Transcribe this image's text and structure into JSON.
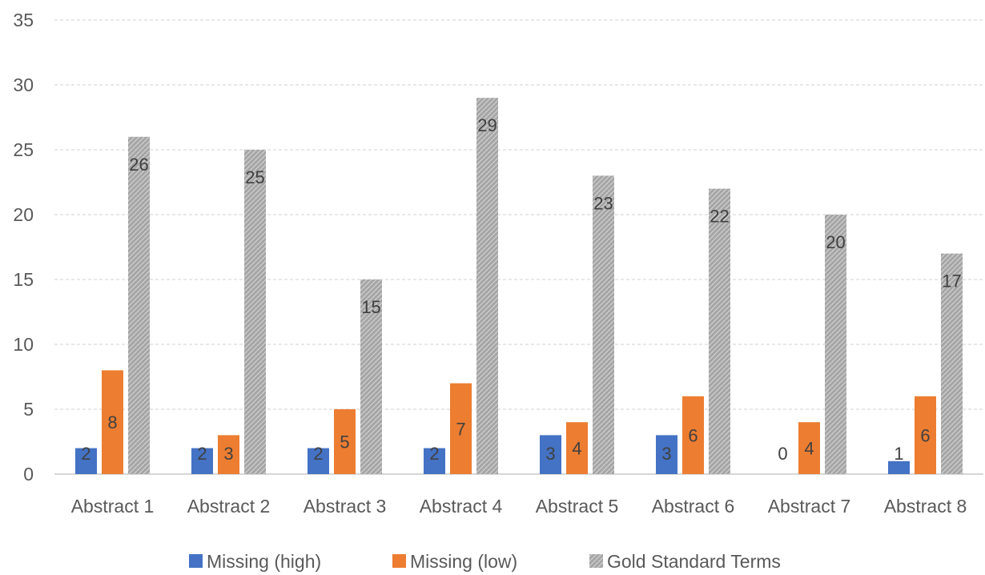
{
  "chart_data": {
    "type": "bar",
    "title": "",
    "xlabel": "",
    "ylabel": "",
    "ylim": [
      0,
      35
    ],
    "yticks": [
      0,
      5,
      10,
      15,
      20,
      25,
      30,
      35
    ],
    "grid": true,
    "legend_position": "bottom",
    "categories": [
      "Abstract 1",
      "Abstract 2",
      "Abstract 3",
      "Abstract 4",
      "Abstract 5",
      "Abstract 6",
      "Abstract 7",
      "Abstract 8"
    ],
    "series": [
      {
        "name": "Missing (high)",
        "color": "#4472C4",
        "values": [
          2,
          2,
          2,
          2,
          3,
          3,
          0,
          1
        ]
      },
      {
        "name": "Missing (low)",
        "color": "#ED7D31",
        "values": [
          8,
          3,
          5,
          7,
          4,
          6,
          4,
          6
        ]
      },
      {
        "name": "Gold Standard Terms",
        "color": "#A5A5A5",
        "values": [
          26,
          25,
          15,
          29,
          23,
          22,
          20,
          17
        ]
      }
    ]
  }
}
